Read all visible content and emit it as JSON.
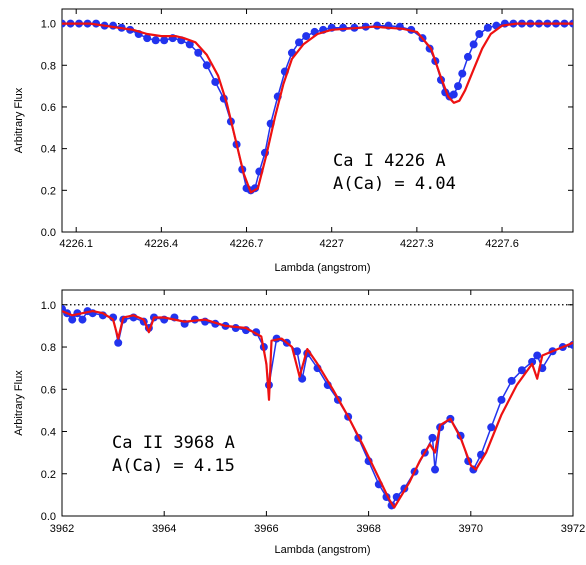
{
  "chart_data": [
    {
      "type": "line",
      "xlabel": "Lambda (angstrom)",
      "ylabel": "Arbitrary Flux",
      "xlim": [
        4226.05,
        4227.85
      ],
      "ylim": [
        0.0,
        1.07
      ],
      "x_ticks": [
        4226.1,
        4226.4,
        4226.7,
        4227.0,
        4227.3,
        4227.6
      ],
      "x_tick_labels": [
        "4226.1",
        "4226.4",
        "4226.7",
        "4227",
        "4227.3",
        "4227.6"
      ],
      "y_ticks": [
        0.0,
        0.2,
        0.4,
        0.6,
        0.8,
        1.0
      ],
      "y_tick_labels": [
        "0.0",
        "0.2",
        "0.4",
        "0.6",
        "0.8",
        "1.0"
      ],
      "continuum_level": 1.0,
      "annotation": [
        "Ca I 4226 A",
        "A(Ca) = 4.04"
      ],
      "series": [
        {
          "style": "observed-points",
          "color": "#2233ee",
          "x": [
            4226.05,
            4226.08,
            4226.11,
            4226.14,
            4226.17,
            4226.2,
            4226.23,
            4226.26,
            4226.29,
            4226.32,
            4226.35,
            4226.38,
            4226.41,
            4226.44,
            4226.47,
            4226.5,
            4226.53,
            4226.56,
            4226.59,
            4226.62,
            4226.645,
            4226.665,
            4226.685,
            4226.7,
            4226.715,
            4226.73,
            4226.745,
            4226.765,
            4226.785,
            4226.81,
            4226.835,
            4226.86,
            4226.885,
            4226.91,
            4226.94,
            4226.97,
            4227.0,
            4227.04,
            4227.08,
            4227.12,
            4227.16,
            4227.2,
            4227.24,
            4227.28,
            4227.32,
            4227.345,
            4227.365,
            4227.385,
            4227.4,
            4227.415,
            4227.43,
            4227.445,
            4227.46,
            4227.48,
            4227.5,
            4227.52,
            4227.55,
            4227.58,
            4227.61,
            4227.64,
            4227.67,
            4227.7,
            4227.73,
            4227.76,
            4227.79,
            4227.82,
            4227.85
          ],
          "y": [
            1.0,
            1.0,
            1.0,
            1.0,
            1.0,
            0.99,
            0.99,
            0.98,
            0.97,
            0.95,
            0.93,
            0.92,
            0.92,
            0.93,
            0.92,
            0.9,
            0.86,
            0.8,
            0.72,
            0.64,
            0.53,
            0.42,
            0.3,
            0.21,
            0.2,
            0.21,
            0.29,
            0.38,
            0.52,
            0.65,
            0.77,
            0.86,
            0.91,
            0.94,
            0.96,
            0.97,
            0.98,
            0.98,
            0.98,
            0.985,
            0.99,
            0.99,
            0.985,
            0.97,
            0.93,
            0.88,
            0.82,
            0.73,
            0.67,
            0.65,
            0.66,
            0.7,
            0.76,
            0.84,
            0.9,
            0.95,
            0.98,
            0.99,
            1.0,
            1.0,
            1.0,
            1.0,
            1.0,
            1.0,
            1.0,
            1.0,
            1.0
          ]
        },
        {
          "style": "synthetic-line",
          "color": "#ee1111",
          "x": [
            4226.05,
            4226.1,
            4226.15,
            4226.2,
            4226.25,
            4226.3,
            4226.35,
            4226.4,
            4226.45,
            4226.48,
            4226.52,
            4226.56,
            4226.6,
            4226.63,
            4226.66,
            4226.69,
            4226.715,
            4226.74,
            4226.77,
            4226.8,
            4226.83,
            4226.86,
            4226.9,
            4226.95,
            4227.0,
            4227.05,
            4227.1,
            4227.15,
            4227.2,
            4227.25,
            4227.3,
            4227.35,
            4227.38,
            4227.41,
            4227.43,
            4227.45,
            4227.47,
            4227.5,
            4227.53,
            4227.56,
            4227.6,
            4227.65,
            4227.7,
            4227.75,
            4227.85
          ],
          "y": [
            1.0,
            1.0,
            1.0,
            0.99,
            0.98,
            0.97,
            0.95,
            0.94,
            0.94,
            0.93,
            0.91,
            0.85,
            0.75,
            0.62,
            0.45,
            0.28,
            0.19,
            0.21,
            0.37,
            0.55,
            0.71,
            0.83,
            0.9,
            0.95,
            0.97,
            0.975,
            0.98,
            0.985,
            0.98,
            0.975,
            0.96,
            0.88,
            0.76,
            0.65,
            0.62,
            0.63,
            0.68,
            0.78,
            0.88,
            0.95,
            0.99,
            1.0,
            1.0,
            1.0,
            1.0
          ]
        }
      ]
    },
    {
      "type": "line",
      "xlabel": "Lambda (angstrom)",
      "ylabel": "Arbitrary Flux",
      "xlim": [
        3962.0,
        3972.0
      ],
      "ylim": [
        0.0,
        1.07
      ],
      "x_ticks": [
        3962,
        3964,
        3966,
        3968,
        3970,
        3972
      ],
      "x_tick_labels": [
        "3962",
        "3964",
        "3966",
        "3968",
        "3970",
        "3972"
      ],
      "y_ticks": [
        0.0,
        0.2,
        0.4,
        0.6,
        0.8,
        1.0
      ],
      "y_tick_labels": [
        "0.0",
        "0.2",
        "0.4",
        "0.6",
        "0.8",
        "1.0"
      ],
      "continuum_level": 1.0,
      "annotation": [
        "Ca II 3968 A",
        "A(Ca) = 4.15"
      ],
      "series": [
        {
          "style": "observed-points",
          "color": "#2233ee",
          "x": [
            3962.0,
            3962.1,
            3962.2,
            3962.3,
            3962.4,
            3962.5,
            3962.6,
            3962.8,
            3963.0,
            3963.1,
            3963.2,
            3963.4,
            3963.6,
            3963.7,
            3963.8,
            3964.0,
            3964.2,
            3964.4,
            3964.6,
            3964.8,
            3965.0,
            3965.2,
            3965.4,
            3965.6,
            3965.8,
            3965.95,
            3966.05,
            3966.2,
            3966.4,
            3966.6,
            3966.7,
            3966.8,
            3967.0,
            3967.2,
            3967.4,
            3967.6,
            3967.8,
            3968.0,
            3968.2,
            3968.35,
            3968.45,
            3968.55,
            3968.7,
            3968.9,
            3969.1,
            3969.25,
            3969.3,
            3969.4,
            3969.6,
            3969.8,
            3969.95,
            3970.05,
            3970.2,
            3970.4,
            3970.6,
            3970.8,
            3971.0,
            3971.2,
            3971.3,
            3971.4,
            3971.6,
            3971.8,
            3972.0
          ],
          "y": [
            0.98,
            0.96,
            0.93,
            0.96,
            0.93,
            0.97,
            0.96,
            0.95,
            0.94,
            0.82,
            0.93,
            0.94,
            0.92,
            0.89,
            0.94,
            0.93,
            0.94,
            0.91,
            0.93,
            0.92,
            0.91,
            0.9,
            0.89,
            0.88,
            0.87,
            0.8,
            0.62,
            0.84,
            0.82,
            0.78,
            0.65,
            0.77,
            0.7,
            0.62,
            0.55,
            0.47,
            0.37,
            0.26,
            0.15,
            0.09,
            0.05,
            0.09,
            0.13,
            0.21,
            0.3,
            0.37,
            0.22,
            0.42,
            0.46,
            0.38,
            0.26,
            0.22,
            0.29,
            0.42,
            0.55,
            0.64,
            0.69,
            0.73,
            0.76,
            0.7,
            0.78,
            0.8,
            0.81
          ]
        },
        {
          "style": "synthetic-line",
          "color": "#ee1111",
          "x": [
            3962.0,
            3962.2,
            3962.4,
            3962.6,
            3962.8,
            3963.0,
            3963.1,
            3963.2,
            3963.4,
            3963.6,
            3963.7,
            3963.8,
            3964.0,
            3964.4,
            3964.8,
            3965.2,
            3965.6,
            3965.9,
            3966.0,
            3966.05,
            3966.1,
            3966.3,
            3966.5,
            3966.65,
            3966.8,
            3967.0,
            3967.3,
            3967.6,
            3967.9,
            3968.2,
            3968.4,
            3968.5,
            3968.6,
            3968.8,
            3969.0,
            3969.2,
            3969.3,
            3969.4,
            3969.6,
            3969.8,
            3970.0,
            3970.1,
            3970.3,
            3970.6,
            3970.9,
            3971.2,
            3971.3,
            3971.4,
            3971.7,
            3972.0
          ],
          "y": [
            0.97,
            0.95,
            0.96,
            0.97,
            0.96,
            0.93,
            0.84,
            0.94,
            0.95,
            0.93,
            0.87,
            0.94,
            0.94,
            0.92,
            0.93,
            0.9,
            0.89,
            0.85,
            0.72,
            0.55,
            0.83,
            0.84,
            0.8,
            0.66,
            0.79,
            0.72,
            0.6,
            0.47,
            0.33,
            0.18,
            0.08,
            0.04,
            0.08,
            0.16,
            0.26,
            0.34,
            0.3,
            0.43,
            0.46,
            0.37,
            0.24,
            0.22,
            0.3,
            0.48,
            0.62,
            0.72,
            0.65,
            0.76,
            0.79,
            0.82
          ]
        }
      ]
    }
  ]
}
